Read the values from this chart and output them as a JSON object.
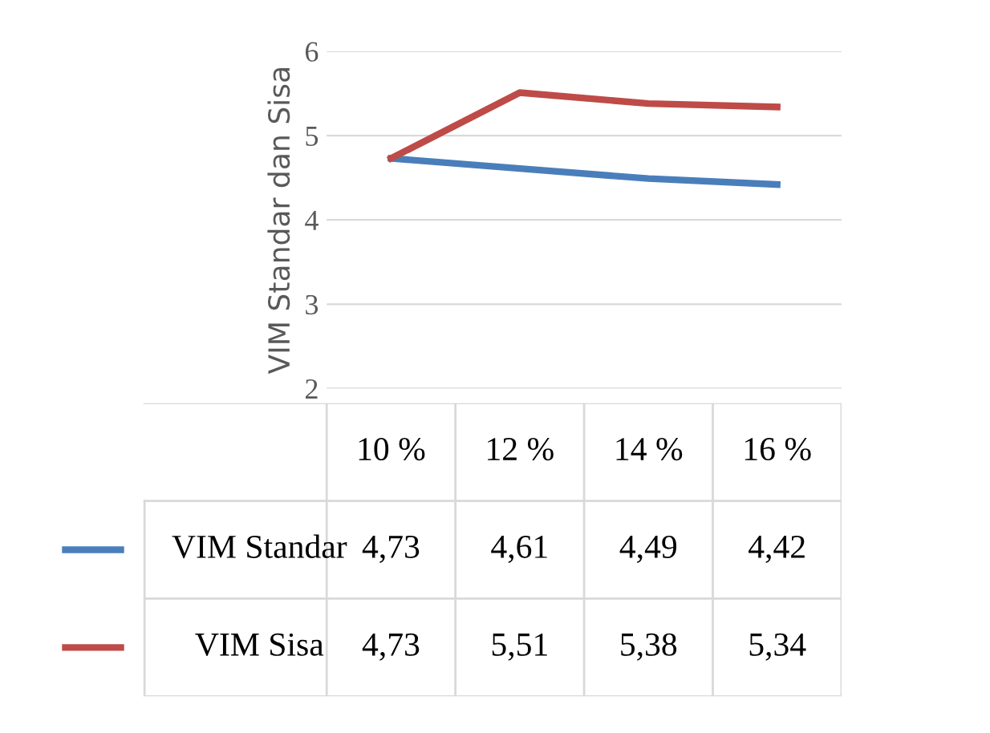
{
  "chart_data": {
    "type": "line",
    "ylabel": "VIM Standar dan Sisa",
    "categories": [
      "10 %",
      "12 %",
      "14 %",
      "16 %"
    ],
    "series": [
      {
        "name": "VIM Standar",
        "color": "#4a7ebb",
        "values": [
          4.73,
          4.61,
          4.49,
          4.42
        ],
        "value_labels": [
          "4,73",
          "4,61",
          "4,49",
          "4,42"
        ]
      },
      {
        "name": "VIM Sisa",
        "color": "#be4b48",
        "values": [
          4.73,
          5.51,
          5.38,
          5.34
        ],
        "value_labels": [
          "4,73",
          "5,51",
          "5,38",
          "5,34"
        ]
      }
    ],
    "ylim": [
      2,
      6
    ],
    "yticks": [
      2,
      3,
      4,
      5,
      6
    ],
    "grid": "y",
    "legend": "left",
    "marker": "none",
    "line_style": "solid"
  }
}
